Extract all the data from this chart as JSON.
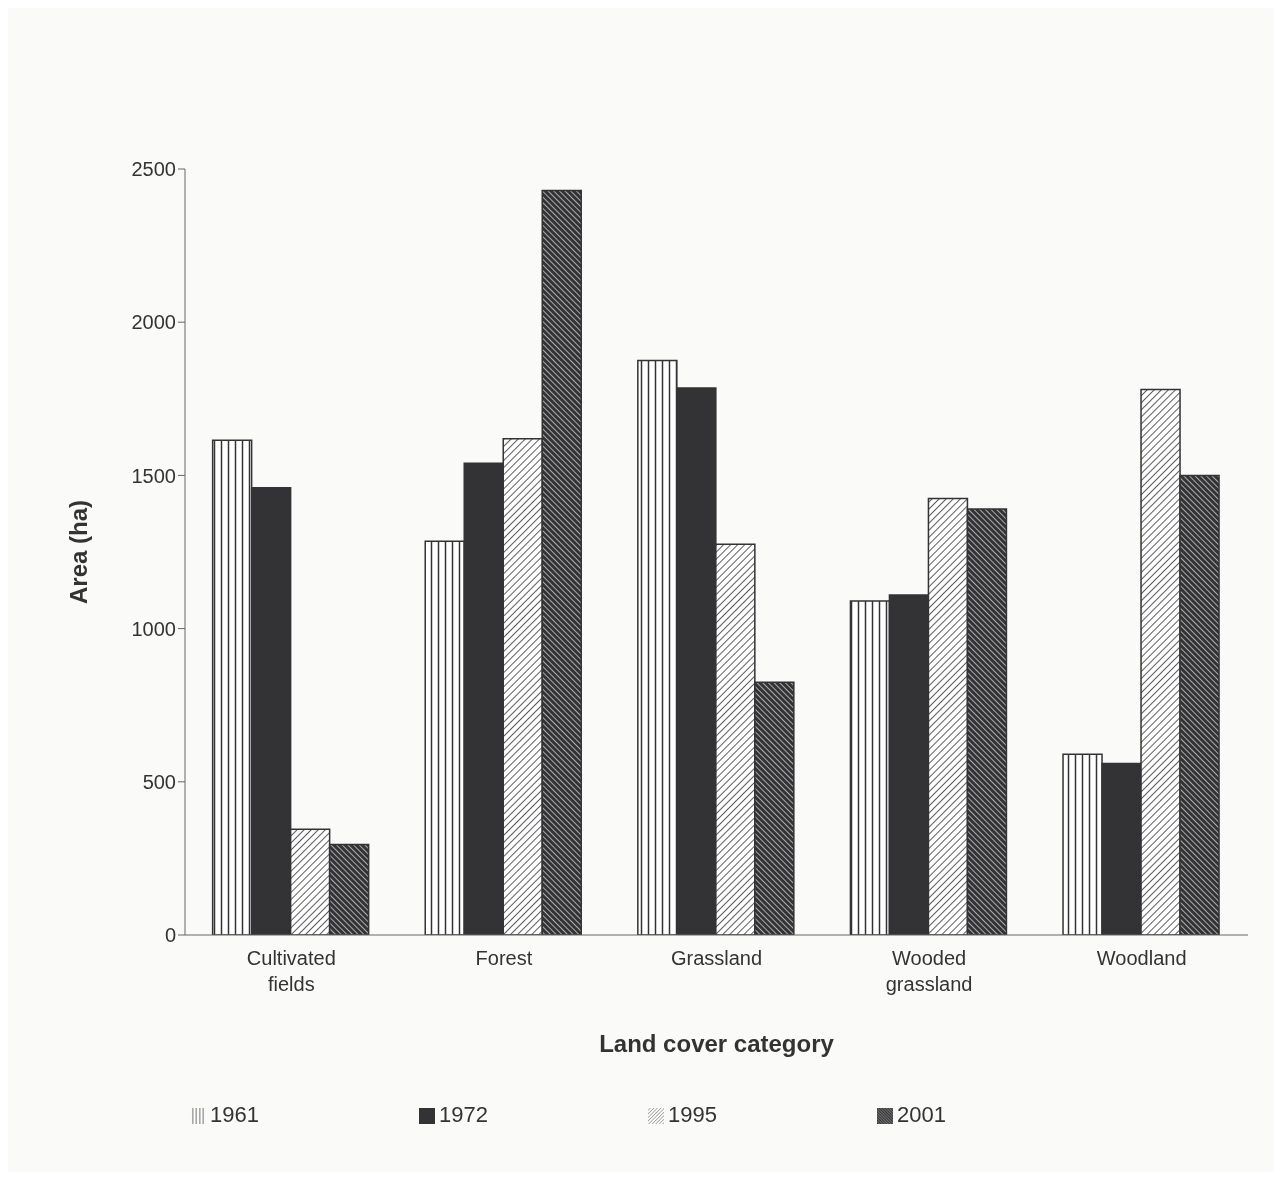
{
  "chart_data": {
    "type": "bar",
    "xlabel": "Land cover category",
    "ylabel": "Area (ha)",
    "categories": [
      "Cultivated fields",
      "Forest",
      "Grassland",
      "Wooded grassland",
      "Woodland"
    ],
    "series": [
      {
        "name": "1961",
        "color": "#333336",
        "values": [
          1615,
          1285,
          1875,
          1090,
          590
        ]
      },
      {
        "name": "1972",
        "color": "#333336",
        "values": [
          1460,
          1540,
          1785,
          1110,
          560
        ]
      },
      {
        "name": "1995",
        "color": "#333336",
        "values": [
          345,
          1620,
          1275,
          1425,
          1780
        ]
      },
      {
        "name": "2001",
        "color": "#333336",
        "values": [
          295,
          2430,
          825,
          1390,
          1500
        ]
      }
    ],
    "ylim": [
      0,
      2500
    ],
    "yticks": [
      0,
      500,
      1000,
      1500,
      2000,
      2500
    ],
    "grid": false,
    "legend": "bottom"
  }
}
